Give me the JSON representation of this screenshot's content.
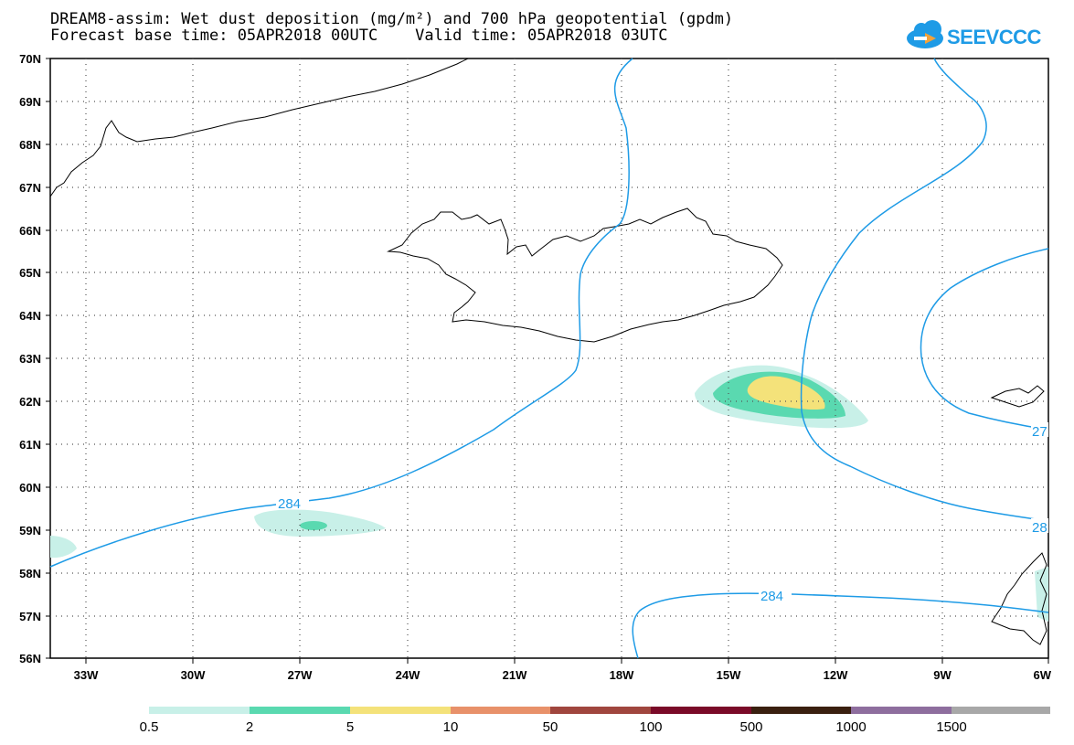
{
  "title": {
    "line1": "DREAM8-assim: Wet dust deposition (mg/m²) and 700 hPa geopotential (gpdm)",
    "line2": "Forecast base time: 05APR2018 00UTC    Valid time: 05APR2018 03UTC"
  },
  "logo": {
    "text": "SEEVCCC",
    "color": "#1e9be6",
    "icon": "cloud-icon"
  },
  "map": {
    "lon_range": [
      -34.5,
      -6
    ],
    "lat_range": [
      56,
      70
    ],
    "lat_labels": [
      "70N",
      "69N",
      "68N",
      "67N",
      "66N",
      "65N",
      "64N",
      "63N",
      "62N",
      "61N",
      "60N",
      "59N",
      "58N",
      "57N",
      "56N"
    ],
    "lon_labels": [
      "33W",
      "30W",
      "27W",
      "24W",
      "21W",
      "18W",
      "15W",
      "12W",
      "9W",
      "6W"
    ],
    "contour_color": "#1e9be6",
    "contour_labels": [
      "284",
      "284",
      "27",
      "28"
    ]
  },
  "legend": {
    "colors": [
      "#c8f0e8",
      "#5ad9b0",
      "#f4e27a",
      "#e8916a",
      "#a0463e",
      "#7a0a28",
      "#3a2010",
      "#8e6e9e",
      "#a8a8a8"
    ],
    "labels": [
      "0.5",
      "2",
      "5",
      "10",
      "50",
      "100",
      "500",
      "1000",
      "1500"
    ]
  }
}
